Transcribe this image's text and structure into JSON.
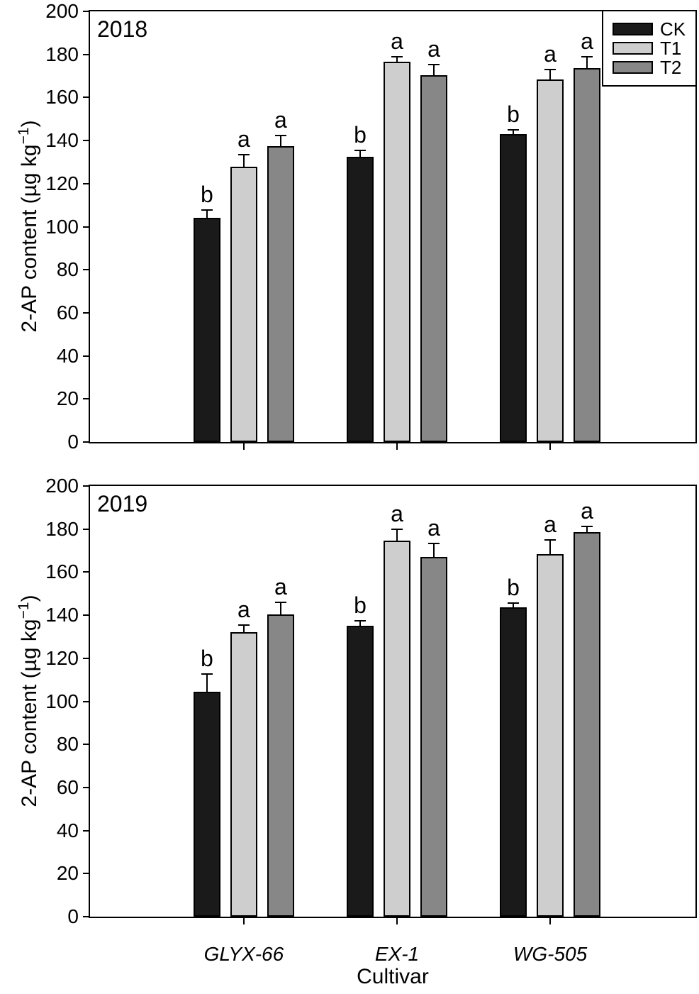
{
  "figure": {
    "xlabel": "Cultivar",
    "ylabel": {
      "full": "2-AP content (µg kg−1)",
      "main": "2-AP content (µg kg",
      "sup": "−1",
      "close": ")"
    },
    "colors": {
      "CK": "#1a1a1a",
      "T1": "#cecece",
      "T2": "#878787",
      "frame": "#000000",
      "background": "#ffffff"
    },
    "legend": {
      "position": "upper-right",
      "items": [
        {
          "label": "CK",
          "color": "#1a1a1a"
        },
        {
          "label": "T1",
          "color": "#cecece"
        },
        {
          "label": "T2",
          "color": "#878787"
        }
      ]
    }
  },
  "chart_data": [
    {
      "type": "bar",
      "title": "2018",
      "xlabel": "",
      "ylabel": "2-AP content (µg kg−1)",
      "ylim": [
        0,
        200
      ],
      "ytick_step": 20,
      "yticks": [
        0,
        20,
        40,
        60,
        80,
        100,
        120,
        140,
        160,
        180,
        200
      ],
      "grid": false,
      "categories": [
        "GLYX-66",
        "EX-1",
        "WG-505"
      ],
      "series": [
        {
          "name": "CK",
          "values": [
            104,
            132.5,
            143
          ],
          "errors": [
            3.5,
            2.5,
            1.8
          ],
          "sig_letters": [
            "b",
            "b",
            "b"
          ]
        },
        {
          "name": "T1",
          "values": [
            128,
            176.5,
            168.5
          ],
          "errors": [
            5,
            2,
            4
          ],
          "sig_letters": [
            "a",
            "a",
            "a"
          ]
        },
        {
          "name": "T2",
          "values": [
            137.5,
            170.5,
            173.5
          ],
          "errors": [
            4.5,
            4.5,
            5
          ],
          "sig_letters": [
            "a",
            "a",
            "a"
          ]
        }
      ]
    },
    {
      "type": "bar",
      "title": "2019",
      "xlabel": "Cultivar",
      "ylabel": "2-AP content (µg kg−1)",
      "ylim": [
        0,
        200
      ],
      "ytick_step": 20,
      "yticks": [
        0,
        20,
        40,
        60,
        80,
        100,
        120,
        140,
        160,
        180,
        200
      ],
      "grid": false,
      "categories": [
        "GLYX-66",
        "EX-1",
        "WG-505"
      ],
      "series": [
        {
          "name": "CK",
          "values": [
            104.5,
            135,
            143.5
          ],
          "errors": [
            8,
            2,
            1.7
          ],
          "sig_letters": [
            "b",
            "b",
            "b"
          ]
        },
        {
          "name": "T1",
          "values": [
            132,
            174.5,
            168.5
          ],
          "errors": [
            3,
            5,
            6
          ],
          "sig_letters": [
            "a",
            "a",
            "a"
          ]
        },
        {
          "name": "T2",
          "values": [
            140.5,
            167,
            178.5
          ],
          "errors": [
            5,
            6,
            2.5
          ],
          "sig_letters": [
            "a",
            "a",
            "a"
          ]
        }
      ]
    }
  ]
}
